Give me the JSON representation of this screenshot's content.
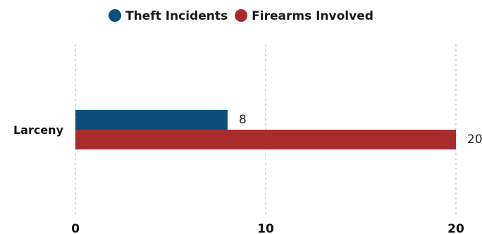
{
  "chart_data": {
    "type": "bar",
    "orientation": "horizontal",
    "categories": [
      "Larceny"
    ],
    "series": [
      {
        "name": "Theft Incidents",
        "values": [
          8
        ],
        "color": "#0b4f7c"
      },
      {
        "name": "Firearms Involved",
        "values": [
          20
        ],
        "color": "#a82c2c"
      }
    ],
    "xlim": [
      0,
      20
    ],
    "xticks": [
      "0",
      "10",
      "20"
    ],
    "grid": true,
    "legend": "top-center",
    "data_labels": true
  }
}
